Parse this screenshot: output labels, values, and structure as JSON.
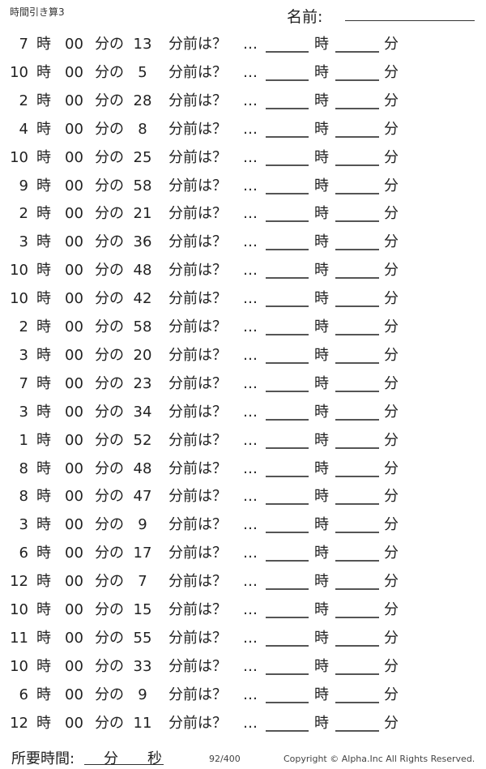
{
  "header": {
    "title": "時間引き算3",
    "name_label": "名前:"
  },
  "labels": {
    "hour": "時",
    "zero_min": "00",
    "min_no": "分の",
    "min_before": "分前は？",
    "dots": "…",
    "ans_hour": "時",
    "ans_min": "分"
  },
  "problems": [
    {
      "hour": "7",
      "minutes": "13"
    },
    {
      "hour": "10",
      "minutes": "5"
    },
    {
      "hour": "2",
      "minutes": "28"
    },
    {
      "hour": "4",
      "minutes": "8"
    },
    {
      "hour": "10",
      "minutes": "25"
    },
    {
      "hour": "9",
      "minutes": "58"
    },
    {
      "hour": "2",
      "minutes": "21"
    },
    {
      "hour": "3",
      "minutes": "36"
    },
    {
      "hour": "10",
      "minutes": "48"
    },
    {
      "hour": "10",
      "minutes": "42"
    },
    {
      "hour": "2",
      "minutes": "58"
    },
    {
      "hour": "3",
      "minutes": "20"
    },
    {
      "hour": "7",
      "minutes": "23"
    },
    {
      "hour": "3",
      "minutes": "34"
    },
    {
      "hour": "1",
      "minutes": "52"
    },
    {
      "hour": "8",
      "minutes": "48"
    },
    {
      "hour": "8",
      "minutes": "47"
    },
    {
      "hour": "3",
      "minutes": "9"
    },
    {
      "hour": "6",
      "minutes": "17"
    },
    {
      "hour": "12",
      "minutes": "7"
    },
    {
      "hour": "10",
      "minutes": "15"
    },
    {
      "hour": "11",
      "minutes": "55"
    },
    {
      "hour": "10",
      "minutes": "33"
    },
    {
      "hour": "6",
      "minutes": "9"
    },
    {
      "hour": "12",
      "minutes": "11"
    }
  ],
  "footer": {
    "time_label": "所要時間:",
    "min": "分",
    "sec": "秒",
    "page": "92/400",
    "copyright": "Copyright ©  Alpha.Inc All Rights Reserved."
  }
}
